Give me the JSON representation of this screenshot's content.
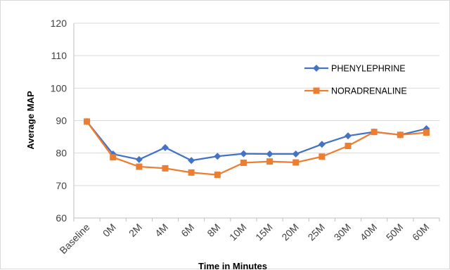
{
  "chart_data": {
    "type": "line",
    "title": "",
    "xlabel": "Time in Minutes",
    "ylabel": "Average MAP",
    "ylim": [
      60,
      120
    ],
    "yticks": [
      60,
      70,
      80,
      90,
      100,
      110,
      120
    ],
    "grid": true,
    "legend_position": "right",
    "categories": [
      "Baseline",
      "0M",
      "2M",
      "4M",
      "6M",
      "8M",
      "10M",
      "15M",
      "20M",
      "25M",
      "30M",
      "40M",
      "50M",
      "60M"
    ],
    "series": [
      {
        "name": "PHENYLEPHRINE",
        "color": "#4472c4",
        "marker": "diamond",
        "values": [
          89.7,
          79.7,
          78.0,
          81.7,
          77.7,
          79.0,
          79.8,
          79.7,
          79.7,
          82.7,
          85.3,
          86.5,
          85.6,
          87.5
        ]
      },
      {
        "name": "NORADRENALINE",
        "color": "#ed7d31",
        "marker": "square",
        "values": [
          89.7,
          78.7,
          75.8,
          75.3,
          74.0,
          73.3,
          77.0,
          77.4,
          77.1,
          78.9,
          82.2,
          86.5,
          85.6,
          86.3
        ]
      }
    ]
  }
}
